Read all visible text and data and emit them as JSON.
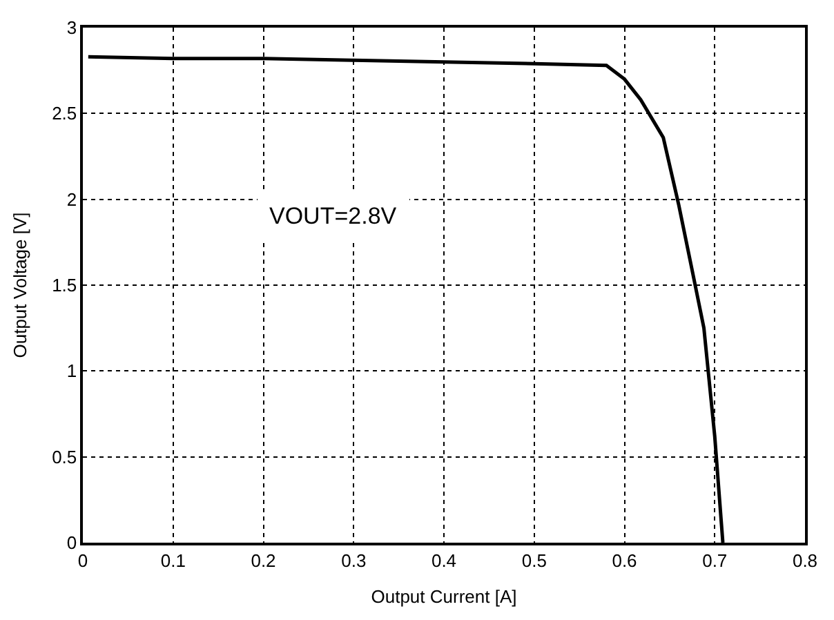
{
  "chart_data": {
    "type": "line",
    "xlabel": "Output Current [A]",
    "ylabel": "Output Voltage [V]",
    "annotations": [
      "VOUT=2.8V"
    ],
    "series": [
      {
        "color": "#000000",
        "x": [
          0.006,
          0.1,
          0.2,
          0.3,
          0.4,
          0.5,
          0.58,
          0.6,
          0.618,
          0.643,
          0.66,
          0.676,
          0.688,
          0.7,
          0.709
        ],
        "values": [
          2.83,
          2.82,
          2.82,
          2.81,
          2.8,
          2.79,
          2.78,
          2.7,
          2.58,
          2.36,
          1.97,
          1.56,
          1.25,
          0.62,
          0
        ]
      }
    ],
    "xlim": [
      0,
      0.8
    ],
    "xticks": [
      0,
      0.1,
      0.2,
      0.3,
      0.4,
      0.5,
      0.6,
      0.7,
      0.8
    ],
    "ylim": [
      0,
      3
    ],
    "yticks": [
      0,
      0.5,
      1,
      1.5,
      2,
      2.5,
      3
    ],
    "grid": true,
    "legend": false,
    "marker": "none",
    "line_style": "solid"
  }
}
